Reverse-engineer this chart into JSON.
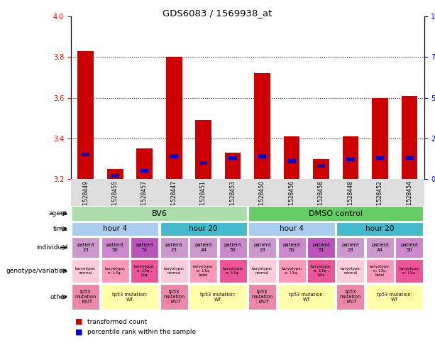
{
  "title": "GDS6083 / 1569938_at",
  "samples": [
    "GSM1528449",
    "GSM1528455",
    "GSM1528457",
    "GSM1528447",
    "GSM1528451",
    "GSM1528453",
    "GSM1528450",
    "GSM1528456",
    "GSM1528458",
    "GSM1528448",
    "GSM1528452",
    "GSM1528454"
  ],
  "bar_values": [
    3.83,
    3.25,
    3.35,
    3.8,
    3.49,
    3.33,
    3.72,
    3.41,
    3.3,
    3.41,
    3.6,
    3.61
  ],
  "blue_pct": [
    15,
    2,
    5,
    14,
    10,
    13,
    14,
    11,
    8,
    12,
    13,
    13
  ],
  "ymin": 3.2,
  "ymax": 4.0,
  "bar_color": "#cc0000",
  "blue_color": "#0000cc",
  "agent_bv6_color": "#aaddaa",
  "agent_dmso_color": "#66cc66",
  "time_h4_color": "#aaccee",
  "time_h20_color": "#44bbcc",
  "indiv_colors": [
    "#cc99cc",
    "#cc88cc",
    "#bb55bb",
    "#cc99cc",
    "#cc99cc",
    "#cc88cc",
    "#cc99cc",
    "#cc88cc",
    "#bb55bb",
    "#cc99cc",
    "#cc99cc",
    "#cc88cc"
  ],
  "indiv_labels": [
    "patient\n23",
    "patient\n50",
    "patient\n51",
    "patient\n23",
    "patient\n44",
    "patient\n50",
    "patient\n23",
    "patient\n50",
    "patient\n51",
    "patient\n23",
    "patient\n44",
    "patient\n50"
  ],
  "geno_colors": [
    "#ffccdd",
    "#ff99bb",
    "#ee5599",
    "#ffccdd",
    "#ff99bb",
    "#ee5599",
    "#ffccdd",
    "#ff99bb",
    "#ee5599",
    "#ffccdd",
    "#ff99bb",
    "#ee5599"
  ],
  "geno_labels": [
    "karyotype:\nnormal",
    "karyotype:\ne: 13q-",
    "karyotype:\ne: 13q-,\n14q-",
    "karyotype:\nnormal",
    "karyotype:\ne: 13q-\nbidel",
    "karyotype:\ne: 13q-",
    "karyotype:\nnormal",
    "karyotype:\ne: 13q-",
    "karyotype:\ne: 13q-,\n14q-",
    "karyotype:\nnormal",
    "karyotype:\ne: 13q-\nbidel",
    "karyotype:\ne: 13q-"
  ],
  "other_mut_color": "#ee88aa",
  "other_wt_color": "#ffffaa",
  "row_labels": [
    "agent",
    "time",
    "individual",
    "genotype/variation",
    "other"
  ]
}
